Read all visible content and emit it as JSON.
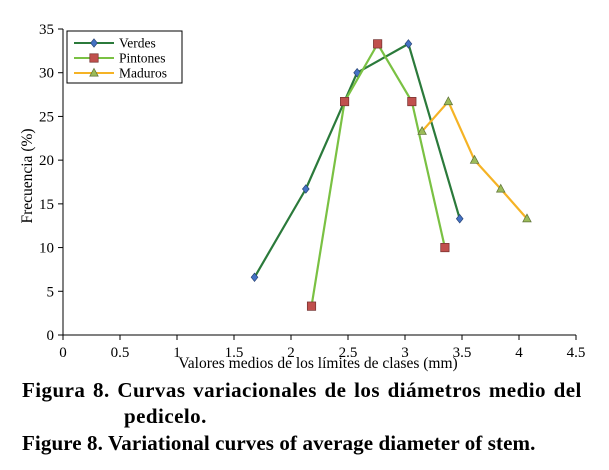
{
  "chart_data": {
    "type": "line",
    "title": "",
    "xlabel": "Valores medios de los límites de clases (mm)",
    "ylabel": "Frecuencia (%)",
    "xlim": [
      0,
      4.5
    ],
    "ylim": [
      0,
      35
    ],
    "x_ticks": [
      "0",
      "0.5",
      "1",
      "1.5",
      "2",
      "2.5",
      "3",
      "3.5",
      "4",
      "4.5"
    ],
    "y_ticks": [
      "0",
      "5",
      "10",
      "15",
      "20",
      "25",
      "30",
      "35"
    ],
    "grid": false,
    "legend_position": "top-left",
    "series": [
      {
        "name": "Verdes",
        "marker": "diamond",
        "line_color": "#2b7a3b",
        "marker_color": "#4472c4",
        "points": [
          [
            1.68,
            6.6
          ],
          [
            2.13,
            16.7
          ],
          [
            2.58,
            30.0
          ],
          [
            3.03,
            33.3
          ],
          [
            3.48,
            13.3
          ]
        ]
      },
      {
        "name": "Pintones",
        "marker": "square",
        "line_color": "#7ac143",
        "marker_color": "#c0504d",
        "points": [
          [
            2.18,
            3.3
          ],
          [
            2.47,
            26.7
          ],
          [
            2.76,
            33.3
          ],
          [
            3.06,
            26.7
          ],
          [
            3.35,
            10.0
          ]
        ]
      },
      {
        "name": "Maduros",
        "marker": "triangle",
        "line_color": "#f5b325",
        "marker_color": "#9bbb59",
        "points": [
          [
            3.15,
            23.3
          ],
          [
            3.38,
            26.7
          ],
          [
            3.61,
            20.0
          ],
          [
            3.84,
            16.7
          ],
          [
            4.07,
            13.3
          ]
        ]
      }
    ]
  },
  "captions": {
    "es_line1": "Figura 8. Curvas variacionales de los diámetros medio del",
    "es_line2": "pedicelo.",
    "en": "Figure 8. Variational curves of average diameter of stem."
  }
}
